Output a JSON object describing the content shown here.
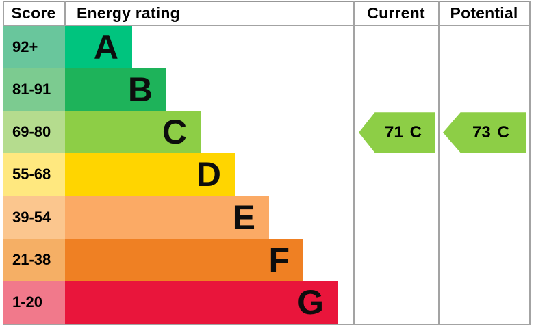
{
  "chart_data": {
    "type": "bar",
    "title": "Energy rating",
    "categories": [
      "A",
      "B",
      "C",
      "D",
      "E",
      "F",
      "G"
    ],
    "score_ranges": [
      "92+",
      "81-91",
      "69-80",
      "55-68",
      "39-54",
      "21-38",
      "1-20"
    ],
    "band_colors": [
      "#00c47e",
      "#1eb35a",
      "#8dce46",
      "#ffd500",
      "#fbaa65",
      "#ef8023",
      "#e9153b"
    ],
    "legend_position": "none",
    "current": {
      "score": 71,
      "rating": "C"
    },
    "potential": {
      "score": 73,
      "rating": "C"
    }
  },
  "header": {
    "score": "Score",
    "energy_rating": "Energy rating",
    "current": "Current",
    "potential": "Potential"
  },
  "bands": [
    {
      "score": "92+",
      "letter": "A",
      "bar_color": "#00c47e",
      "score_color": "#69c69c"
    },
    {
      "score": "81-91",
      "letter": "B",
      "bar_color": "#1eb35a",
      "score_color": "#7ccb90"
    },
    {
      "score": "69-80",
      "letter": "C",
      "bar_color": "#8dce46",
      "score_color": "#b5dc8e"
    },
    {
      "score": "55-68",
      "letter": "D",
      "bar_color": "#ffd500",
      "score_color": "#ffe87f"
    },
    {
      "score": "39-54",
      "letter": "E",
      "bar_color": "#fbaa65",
      "score_color": "#fbc68e"
    },
    {
      "score": "21-38",
      "letter": "F",
      "bar_color": "#ef8023",
      "score_color": "#f5af65"
    },
    {
      "score": "1-20",
      "letter": "G",
      "bar_color": "#e9153b",
      "score_color": "#f1798b"
    }
  ],
  "current": {
    "value": "71",
    "letter": "C",
    "color": "#8dce46",
    "band_index": 2
  },
  "potential": {
    "value": "73",
    "letter": "C",
    "color": "#8dce46",
    "band_index": 2
  }
}
